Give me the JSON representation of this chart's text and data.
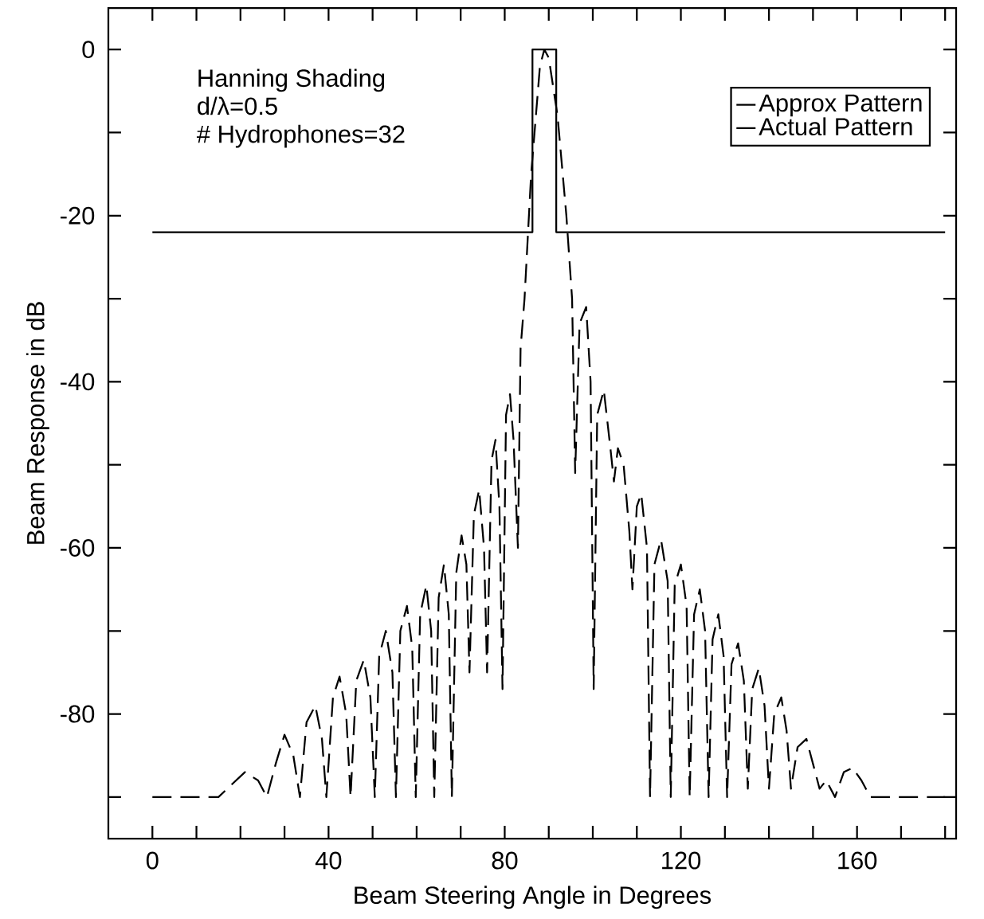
{
  "chart_data": {
    "type": "line",
    "xlabel": "Beam Steering Angle in Degrees",
    "ylabel": "Beam Response in dB",
    "annotations": [
      "Hanning Shading",
      "d/λ=0.5",
      "# Hydrophones=32"
    ],
    "xlim": [
      -10,
      182.5
    ],
    "ylim": [
      -95,
      5
    ],
    "xticks": [
      0,
      {
        "value": 10,
        "label": null
      },
      {
        "value": 20,
        "label": null
      },
      {
        "value": 30,
        "label": null
      },
      40,
      {
        "value": 50,
        "label": null
      },
      {
        "value": 60,
        "label": null
      },
      {
        "value": 70,
        "label": null
      },
      80,
      {
        "value": 90,
        "label": null
      },
      {
        "value": 100,
        "label": null
      },
      {
        "value": 110,
        "label": null
      },
      120,
      {
        "value": 130,
        "label": null
      },
      {
        "value": 140,
        "label": null
      },
      {
        "value": 150,
        "label": null
      },
      160,
      {
        "value": 170,
        "label": null
      },
      {
        "value": 180,
        "label": null
      }
    ],
    "yticks": [
      {
        "value": -90,
        "label": null
      },
      -80,
      {
        "value": -70,
        "label": null
      },
      -60,
      {
        "value": -50,
        "label": null
      },
      -40,
      {
        "value": -30,
        "label": null
      },
      -20,
      {
        "value": -10,
        "label": null
      },
      0
    ],
    "legend": "top right",
    "series": [
      {
        "name": "Approx Pattern",
        "color": "#000000",
        "line_style": "solid",
        "x": [
          0,
          86.3,
          86.3,
          91.7,
          91.7,
          180
        ],
        "values": [
          -22,
          -22,
          0,
          0,
          -22,
          -22
        ]
      },
      {
        "name": "Actual Pattern",
        "color": "#000000",
        "line_style": "dashed",
        "x": [
          0,
          15,
          17,
          21,
          24,
          26,
          28,
          30,
          32,
          33.5,
          35,
          37,
          38.5,
          39.5,
          41,
          42.5,
          44,
          45,
          46.3,
          48,
          49.5,
          50.5,
          51.5,
          53,
          54.5,
          55.3,
          56.3,
          57.8,
          59,
          59.8,
          60.8,
          62.2,
          63.3,
          64,
          65,
          66.2,
          67.3,
          68,
          69,
          70.2,
          71.3,
          72,
          73,
          74.2,
          75.3,
          76,
          77,
          77.9,
          78.8,
          79.5,
          80.3,
          81.2,
          82,
          83,
          83.6,
          84.5,
          86,
          88,
          89,
          90,
          92,
          94,
          95.3,
          96,
          97,
          98.5,
          99.5,
          100.2,
          101,
          102.5,
          104,
          104.8,
          105.7,
          107,
          108.3,
          109,
          110,
          111,
          112.3,
          113,
          114,
          115.5,
          117,
          117.7,
          118.6,
          120,
          121.3,
          122,
          123,
          124.3,
          125.5,
          126.3,
          127.2,
          128.5,
          129.7,
          130.5,
          131.5,
          133,
          134.3,
          135.2,
          136.2,
          137.7,
          139,
          140,
          141.2,
          142.8,
          144,
          145,
          146.5,
          148.5,
          150,
          151.5,
          153,
          155,
          157,
          159,
          161,
          163,
          180
        ],
        "values": [
          -90,
          -90,
          -89,
          -87,
          -88,
          -90,
          -86,
          -82.5,
          -85,
          -90,
          -81,
          -79,
          -83,
          -90,
          -78,
          -75.5,
          -80,
          -90,
          -76,
          -73.5,
          -78,
          -90,
          -73,
          -70,
          -75,
          -90,
          -70,
          -67,
          -72,
          -90,
          -68,
          -64.5,
          -70,
          -90,
          -66,
          -62,
          -68,
          -90,
          -63,
          -58.5,
          -62,
          -75,
          -56,
          -53,
          -60,
          -75,
          -49.5,
          -47,
          -55,
          -77,
          -44,
          -41.5,
          -47,
          -60,
          -36,
          -30,
          -15,
          -2,
          0,
          -1,
          -8,
          -20,
          -30,
          -51,
          -33,
          -31,
          -40,
          -77,
          -44,
          -41,
          -48,
          -52,
          -48,
          -50,
          -58,
          -65,
          -55,
          -53.5,
          -60,
          -90,
          -62,
          -59,
          -64,
          -90,
          -64.5,
          -62,
          -67,
          -90,
          -68,
          -65,
          -70,
          -90,
          -71,
          -68,
          -73,
          -90,
          -74,
          -71.5,
          -76,
          -89,
          -77,
          -74.5,
          -79,
          -89,
          -80,
          -78,
          -82,
          -89,
          -84,
          -83,
          -86,
          -89,
          -88,
          -90,
          -87,
          -86.5,
          -88,
          -90,
          -90
        ]
      }
    ]
  }
}
